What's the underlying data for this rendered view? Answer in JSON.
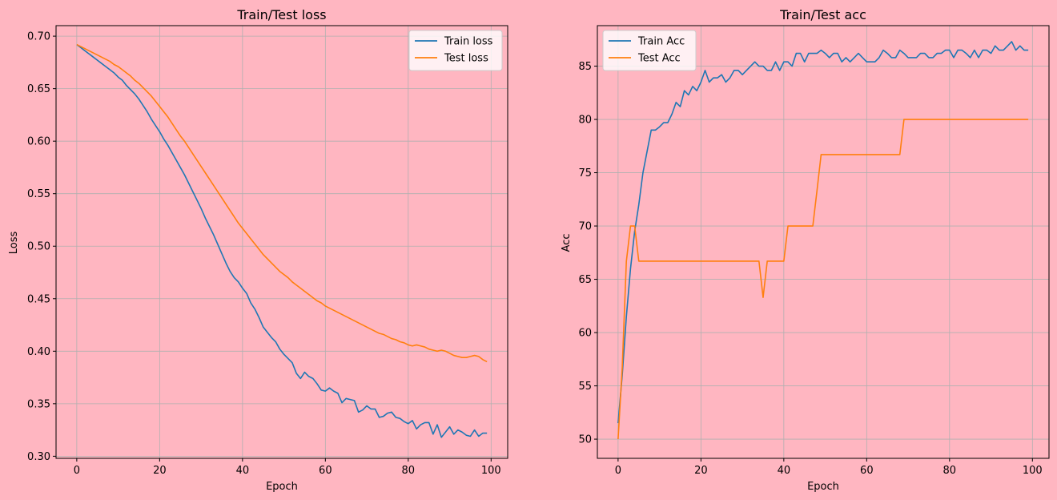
{
  "chart_data": [
    {
      "type": "line",
      "title": "Train/Test loss",
      "xlabel": "Epoch",
      "ylabel": "Loss",
      "xlim": [
        -5,
        104
      ],
      "ylim": [
        0.298,
        0.71
      ],
      "xticks": [
        0,
        20,
        40,
        60,
        80,
        100
      ],
      "yticks": [
        0.3,
        0.35,
        0.4,
        0.45,
        0.5,
        0.55,
        0.6,
        0.65,
        0.7
      ],
      "ytick_labels": [
        "0.30",
        "0.35",
        "0.40",
        "0.45",
        "0.50",
        "0.55",
        "0.60",
        "0.65",
        "0.70"
      ],
      "grid": true,
      "legend": "top-right",
      "series": [
        {
          "name": "Train loss",
          "color": "#1f77b4",
          "values": [
            0.692,
            0.689,
            0.686,
            0.683,
            0.68,
            0.677,
            0.674,
            0.671,
            0.668,
            0.665,
            0.661,
            0.658,
            0.653,
            0.649,
            0.645,
            0.64,
            0.634,
            0.628,
            0.621,
            0.615,
            0.609,
            0.602,
            0.596,
            0.589,
            0.582,
            0.575,
            0.568,
            0.56,
            0.552,
            0.544,
            0.536,
            0.527,
            0.519,
            0.511,
            0.502,
            0.493,
            0.484,
            0.476,
            0.47,
            0.466,
            0.46,
            0.455,
            0.446,
            0.44,
            0.432,
            0.423,
            0.418,
            0.413,
            0.409,
            0.402,
            0.397,
            0.393,
            0.389,
            0.379,
            0.374,
            0.38,
            0.376,
            0.374,
            0.369,
            0.363,
            0.362,
            0.365,
            0.362,
            0.36,
            0.351,
            0.355,
            0.354,
            0.353,
            0.342,
            0.344,
            0.348,
            0.345,
            0.345,
            0.337,
            0.338,
            0.341,
            0.342,
            0.337,
            0.336,
            0.333,
            0.331,
            0.334,
            0.326,
            0.33,
            0.332,
            0.332,
            0.321,
            0.33,
            0.318,
            0.323,
            0.328,
            0.321,
            0.325,
            0.323,
            0.32,
            0.319,
            0.325,
            0.319,
            0.322,
            0.322
          ]
        },
        {
          "name": "Test loss",
          "color": "#ff7f0e",
          "values": [
            0.692,
            0.69,
            0.688,
            0.686,
            0.684,
            0.682,
            0.68,
            0.678,
            0.676,
            0.673,
            0.671,
            0.668,
            0.665,
            0.662,
            0.658,
            0.655,
            0.651,
            0.647,
            0.643,
            0.638,
            0.633,
            0.628,
            0.623,
            0.617,
            0.611,
            0.605,
            0.6,
            0.594,
            0.588,
            0.582,
            0.576,
            0.57,
            0.564,
            0.558,
            0.552,
            0.546,
            0.54,
            0.534,
            0.528,
            0.522,
            0.517,
            0.512,
            0.507,
            0.502,
            0.497,
            0.492,
            0.488,
            0.484,
            0.48,
            0.476,
            0.473,
            0.47,
            0.466,
            0.463,
            0.46,
            0.457,
            0.454,
            0.451,
            0.448,
            0.446,
            0.443,
            0.441,
            0.439,
            0.437,
            0.435,
            0.433,
            0.431,
            0.429,
            0.427,
            0.425,
            0.423,
            0.421,
            0.419,
            0.417,
            0.416,
            0.414,
            0.412,
            0.411,
            0.409,
            0.408,
            0.406,
            0.405,
            0.406,
            0.405,
            0.404,
            0.402,
            0.401,
            0.4,
            0.401,
            0.4,
            0.398,
            0.396,
            0.395,
            0.394,
            0.394,
            0.395,
            0.396,
            0.395,
            0.392,
            0.39
          ]
        }
      ]
    },
    {
      "type": "line",
      "title": "Train/Test acc",
      "xlabel": "Epoch",
      "ylabel": "Acc",
      "xlim": [
        -5,
        104
      ],
      "ylim": [
        48.2,
        88.8
      ],
      "xticks": [
        0,
        20,
        40,
        60,
        80,
        100
      ],
      "yticks": [
        50,
        55,
        60,
        65,
        70,
        75,
        80,
        85
      ],
      "ytick_labels": [
        "50",
        "55",
        "60",
        "65",
        "70",
        "75",
        "80",
        "85"
      ],
      "grid": true,
      "legend": "top-left",
      "series": [
        {
          "name": "Train Acc",
          "color": "#1f77b4",
          "values": [
            51.5,
            56.0,
            61.5,
            66.0,
            69.5,
            72.0,
            75.0,
            77.0,
            79.0,
            79.0,
            79.3,
            79.7,
            79.7,
            80.5,
            81.6,
            81.2,
            82.7,
            82.3,
            83.1,
            82.7,
            83.5,
            84.6,
            83.5,
            83.9,
            83.9,
            84.2,
            83.5,
            83.9,
            84.6,
            84.6,
            84.2,
            84.6,
            85.0,
            85.4,
            85.0,
            85.0,
            84.6,
            84.6,
            85.4,
            84.6,
            85.4,
            85.4,
            85.0,
            86.2,
            86.2,
            85.4,
            86.2,
            86.2,
            86.2,
            86.5,
            86.2,
            85.8,
            86.2,
            86.2,
            85.4,
            85.8,
            85.4,
            85.8,
            86.2,
            85.8,
            85.4,
            85.4,
            85.4,
            85.8,
            86.5,
            86.2,
            85.8,
            85.8,
            86.5,
            86.2,
            85.8,
            85.8,
            85.8,
            86.2,
            86.2,
            85.8,
            85.8,
            86.2,
            86.2,
            86.5,
            86.5,
            85.8,
            86.5,
            86.5,
            86.2,
            85.8,
            86.5,
            85.8,
            86.5,
            86.5,
            86.2,
            86.9,
            86.5,
            86.5,
            86.9,
            87.3,
            86.5,
            86.9,
            86.5,
            86.5
          ]
        },
        {
          "name": "Test Acc",
          "color": "#ff7f0e",
          "values": [
            50.0,
            56.7,
            66.7,
            70.0,
            70.0,
            66.7,
            66.7,
            66.7,
            66.7,
            66.7,
            66.7,
            66.7,
            66.7,
            66.7,
            66.7,
            66.7,
            66.7,
            66.7,
            66.7,
            66.7,
            66.7,
            66.7,
            66.7,
            66.7,
            66.7,
            66.7,
            66.7,
            66.7,
            66.7,
            66.7,
            66.7,
            66.7,
            66.7,
            66.7,
            66.7,
            63.3,
            66.7,
            66.7,
            66.7,
            66.7,
            66.7,
            70.0,
            70.0,
            70.0,
            70.0,
            70.0,
            70.0,
            70.0,
            73.3,
            76.7,
            76.7,
            76.7,
            76.7,
            76.7,
            76.7,
            76.7,
            76.7,
            76.7,
            76.7,
            76.7,
            76.7,
            76.7,
            76.7,
            76.7,
            76.7,
            76.7,
            76.7,
            76.7,
            76.7,
            80.0,
            80.0,
            80.0,
            80.0,
            80.0,
            80.0,
            80.0,
            80.0,
            80.0,
            80.0,
            80.0,
            80.0,
            80.0,
            80.0,
            80.0,
            80.0,
            80.0,
            80.0,
            80.0,
            80.0,
            80.0,
            80.0,
            80.0,
            80.0,
            80.0,
            80.0,
            80.0,
            80.0,
            80.0,
            80.0,
            80.0
          ]
        }
      ]
    }
  ]
}
